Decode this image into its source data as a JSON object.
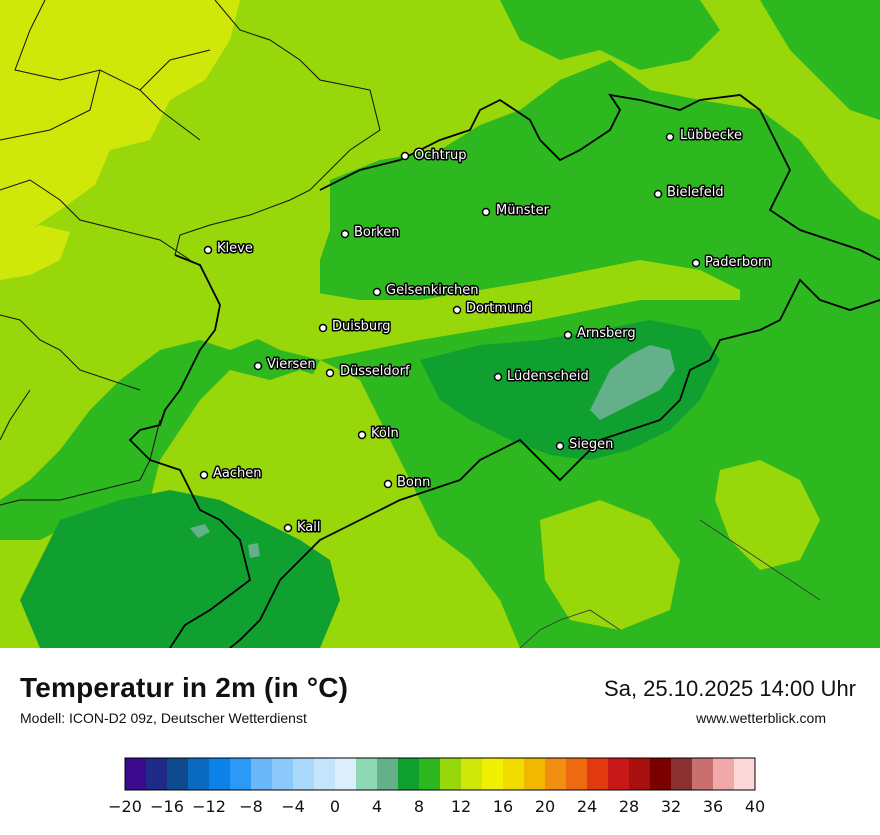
{
  "title": "Temperatur in 2m (in °C)",
  "model": "Modell: ICON-D2 09z, Deutscher Wetterdienst",
  "datetime": "Sa, 25.10.2025 14:00 Uhr",
  "website": "www.wetterblick.com",
  "cities": [
    {
      "name": "Lübbecke"
    },
    {
      "name": "Ochtrup"
    },
    {
      "name": "Bielefeld"
    },
    {
      "name": "Münster"
    },
    {
      "name": "Borken"
    },
    {
      "name": "Kleve"
    },
    {
      "name": "Paderborn"
    },
    {
      "name": "Gelsenkirchen"
    },
    {
      "name": "Dortmund"
    },
    {
      "name": "Duisburg"
    },
    {
      "name": "Arnsberg"
    },
    {
      "name": "Viersen"
    },
    {
      "name": "Düsseldorf"
    },
    {
      "name": "Lüdenscheid"
    },
    {
      "name": "Köln"
    },
    {
      "name": "Siegen"
    },
    {
      "name": "Aachen"
    },
    {
      "name": "Bonn"
    },
    {
      "name": "Kall"
    }
  ],
  "legend": {
    "colors": [
      "#3a0a8c",
      "#1e2a86",
      "#0f4a8c",
      "#0a6ac0",
      "#0a82e8",
      "#2a9af6",
      "#6ab8fa",
      "#8cc8fa",
      "#aad8fb",
      "#c4e4fb",
      "#dcedfc",
      "#8ed8b4",
      "#64b08a",
      "#10a030",
      "#2eb820",
      "#98d80a",
      "#cfe80a",
      "#f0f000",
      "#f2dc00",
      "#f2b800",
      "#f28e10",
      "#ee6a10",
      "#e23a10",
      "#c81818",
      "#a81010",
      "#7a0000",
      "#8a3030",
      "#c87070",
      "#f0a8a8",
      "#fcd8d8"
    ],
    "tick_labels": [
      "−20",
      "−16",
      "−12",
      "−8",
      "−4",
      "0",
      "4",
      "8",
      "12",
      "16",
      "20",
      "24",
      "28",
      "32",
      "36",
      "40"
    ]
  }
}
